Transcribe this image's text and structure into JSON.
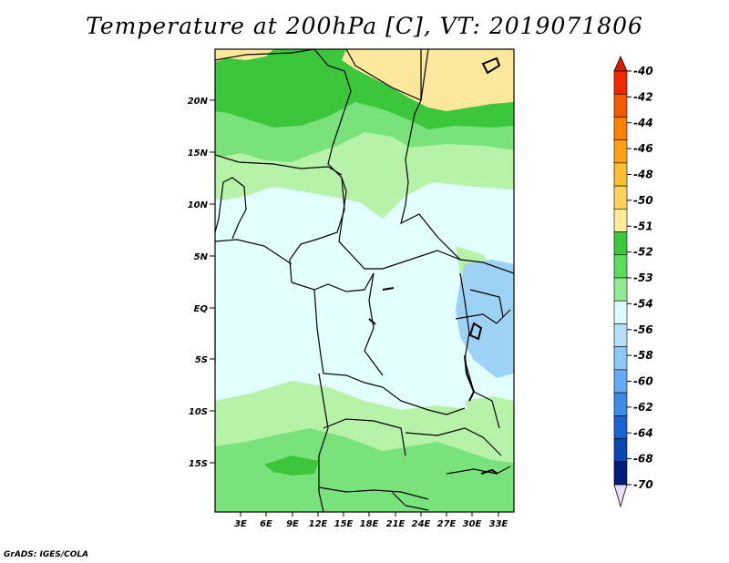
{
  "title": "Temperature at 200hPa [C], VT: 2019071806",
  "credit": "GrADS: IGES/COLA",
  "map": {
    "lat_labels": [
      "20N",
      "15N",
      "10N",
      "5N",
      "EQ",
      "5S",
      "10S",
      "15S"
    ],
    "lon_labels": [
      "3E",
      "6E",
      "9E",
      "12E",
      "15E",
      "18E",
      "21E",
      "24E",
      "27E",
      "30E",
      "33E"
    ],
    "fill_colors": {
      "warmest": "#fbe89c",
      "green_dark": "#3cc63c",
      "green_mid": "#7ae27a",
      "green_light": "#b6f2a8",
      "pale_cyan": "#e2fefe",
      "light_blue": "#9dd2f4"
    }
  },
  "legend": {
    "labels": [
      "-40",
      "-42",
      "-44",
      "-46",
      "-48",
      "-50",
      "-51",
      "-52",
      "-53",
      "-54",
      "-56",
      "-58",
      "-60",
      "-62",
      "-64",
      "-68",
      "-70"
    ],
    "colors": [
      "#f02800",
      "#f65a00",
      "#fa8200",
      "#fca014",
      "#fcbe32",
      "#fcd25a",
      "#fcec9a",
      "#3cc83c",
      "#5cdc5c",
      "#92ea92",
      "#dcfcfc",
      "#b4e0fa",
      "#8cc8f8",
      "#64aaf4",
      "#3c8ce6",
      "#1a64d2",
      "#0a46b4",
      "#001e78"
    ],
    "top_arrow_color": "#dc1e00",
    "bottom_arrow_color": "#e6dcf8"
  }
}
